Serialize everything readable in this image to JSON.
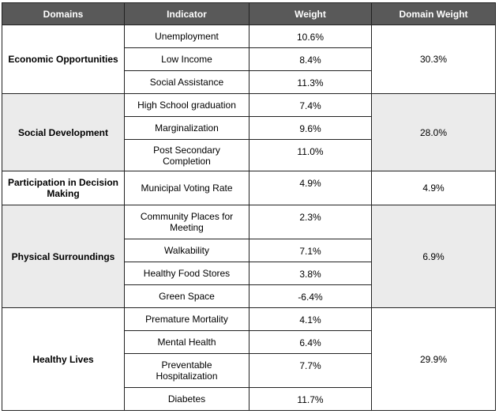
{
  "headers": [
    "Domains",
    "Indicator",
    "Weight",
    "Domain Weight"
  ],
  "groups": [
    {
      "domain": "Economic Opportunities",
      "domain_weight": "30.3%",
      "rows": [
        {
          "indicator": "Unemployment",
          "weight": "10.6%"
        },
        {
          "indicator": "Low Income",
          "weight": "8.4%"
        },
        {
          "indicator": "Social Assistance",
          "weight": "11.3%"
        }
      ]
    },
    {
      "domain": "Social Development",
      "domain_weight": "28.0%",
      "rows": [
        {
          "indicator": "High School graduation",
          "weight": "7.4%"
        },
        {
          "indicator": "Marginalization",
          "weight": "9.6%"
        },
        {
          "indicator": "Post Secondary Completion",
          "weight": "11.0%"
        }
      ]
    },
    {
      "domain": "Participation in Decision Making",
      "domain_weight": "4.9%",
      "rows": [
        {
          "indicator": "Municipal Voting Rate",
          "weight": "4.9%"
        }
      ]
    },
    {
      "domain": "Physical Surroundings",
      "domain_weight": "6.9%",
      "rows": [
        {
          "indicator": "Community Places for Meeting",
          "weight": "2.3%"
        },
        {
          "indicator": "Walkability",
          "weight": "7.1%"
        },
        {
          "indicator": "Healthy Food Stores",
          "weight": "3.8%"
        },
        {
          "indicator": "Green Space",
          "weight": "-6.4%"
        }
      ]
    },
    {
      "domain": "Healthy Lives",
      "domain_weight": "29.9%",
      "rows": [
        {
          "indicator": "Premature Mortality",
          "weight": "4.1%"
        },
        {
          "indicator": "Mental Health",
          "weight": "6.4%"
        },
        {
          "indicator": "Preventable Hospitalization",
          "weight": "7.7%"
        },
        {
          "indicator": "Diabetes",
          "weight": "11.7%"
        }
      ]
    }
  ]
}
